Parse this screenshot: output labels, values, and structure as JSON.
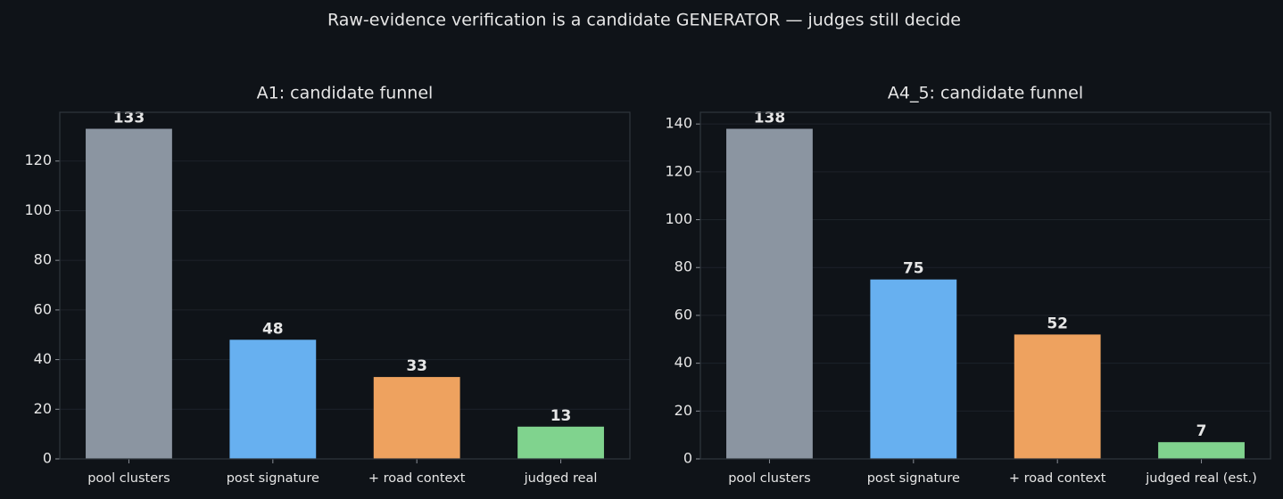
{
  "title": "Raw-evidence verification is a candidate GENERATOR — judges still decide",
  "chart_data": [
    {
      "type": "bar",
      "title": "A1: candidate funnel",
      "categories": [
        "pool clusters",
        "post signature",
        "+ road context",
        "judged real"
      ],
      "values": [
        133,
        48,
        33,
        13
      ],
      "colors": [
        "#8b95a1",
        "#67b0f0",
        "#eea25f",
        "#80d38e"
      ],
      "ylim": [
        0,
        139.65
      ],
      "yticks": [
        0,
        20,
        40,
        60,
        80,
        100,
        120
      ],
      "grid": true
    },
    {
      "type": "bar",
      "title": "A4_5: candidate funnel",
      "categories": [
        "pool clusters",
        "post signature",
        "+ road context",
        "judged real (est.)"
      ],
      "values": [
        138,
        75,
        52,
        7
      ],
      "colors": [
        "#8b95a1",
        "#67b0f0",
        "#eea25f",
        "#80d38e"
      ],
      "ylim": [
        0,
        144.9
      ],
      "yticks": [
        0,
        20,
        40,
        60,
        80,
        100,
        120,
        140
      ],
      "grid": true
    }
  ]
}
